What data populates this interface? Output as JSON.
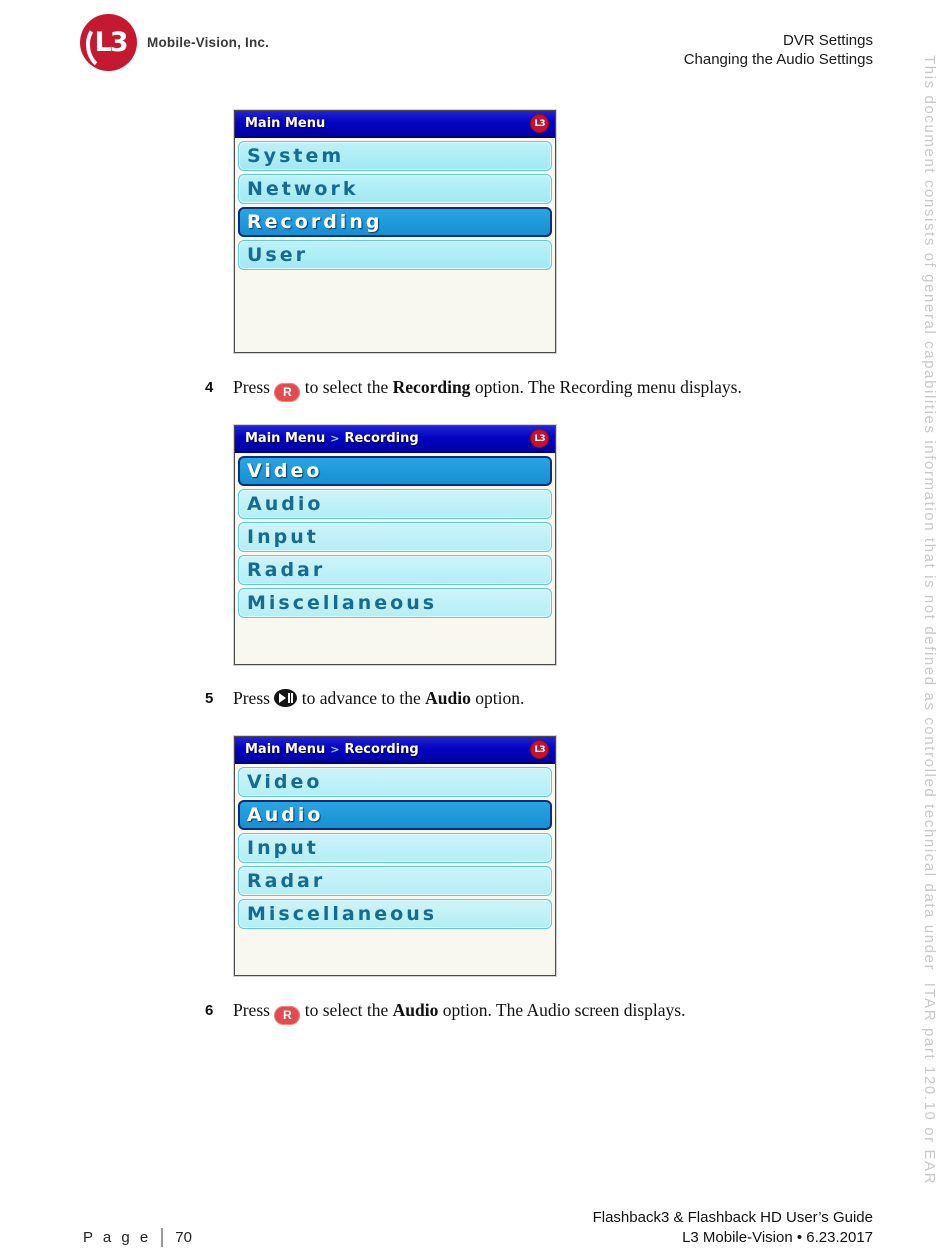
{
  "header": {
    "logo_text": "L3",
    "company": "Mobile-Vision, Inc.",
    "doc_title": "DVR Settings",
    "doc_subtitle": "Changing the Audio Settings"
  },
  "screens": [
    {
      "title": "Main Menu",
      "badge": "L3",
      "items": [
        {
          "label": "System",
          "selected": false
        },
        {
          "label": "Network",
          "selected": false
        },
        {
          "label": "Recording",
          "selected": true
        },
        {
          "label": "User",
          "selected": false
        }
      ]
    },
    {
      "title": "Main Menu",
      "separator": ">",
      "subtitle": "Recording",
      "badge": "L3",
      "items": [
        {
          "label": "Video",
          "selected": true
        },
        {
          "label": "Audio",
          "selected": false
        },
        {
          "label": "Input",
          "selected": false
        },
        {
          "label": "Radar",
          "selected": false
        },
        {
          "label": "Miscellaneous",
          "selected": false
        }
      ]
    },
    {
      "title": "Main Menu",
      "separator": ">",
      "subtitle": "Recording",
      "badge": "L3",
      "items": [
        {
          "label": "Video",
          "selected": false
        },
        {
          "label": "Audio",
          "selected": true
        },
        {
          "label": "Input",
          "selected": false
        },
        {
          "label": "Radar",
          "selected": false
        },
        {
          "label": "Miscellaneous",
          "selected": false
        }
      ]
    }
  ],
  "steps": [
    {
      "number": "4",
      "pre": "Press ",
      "icon": "r-button",
      "icon_label": "R",
      "mid": " to select the ",
      "bold": "Recording",
      "post": " option. The Recording menu displays."
    },
    {
      "number": "5",
      "pre": "Press ",
      "icon": "play-pause-button",
      "mid": " to advance to the ",
      "bold": "Audio",
      "post": " option."
    },
    {
      "number": "6",
      "pre": "Press ",
      "icon": "r-button",
      "icon_label": "R",
      "mid": " to select the ",
      "bold": "Audio",
      "post": " option. The Audio screen displays."
    }
  ],
  "footer": {
    "page_label": "P a g e",
    "page_number": "70",
    "guide_title": "Flashback3 & Flashback HD User’s Guide",
    "guide_info": "L3 Mobile-Vision • 6.23.2017"
  },
  "watermark": "This document consists of general capabilities information that is not defined as controlled technical data under  ITAR part 120.10 or EAR",
  "colors": {
    "brand_red": "#c41230",
    "titlebar_blue": "#0404c0",
    "selected_item_blue": "#1b9ade",
    "menu_item_cyan": "#a9edf5",
    "menu_item_text": "#176b91",
    "watermark_gray": "#c9c9c9"
  }
}
